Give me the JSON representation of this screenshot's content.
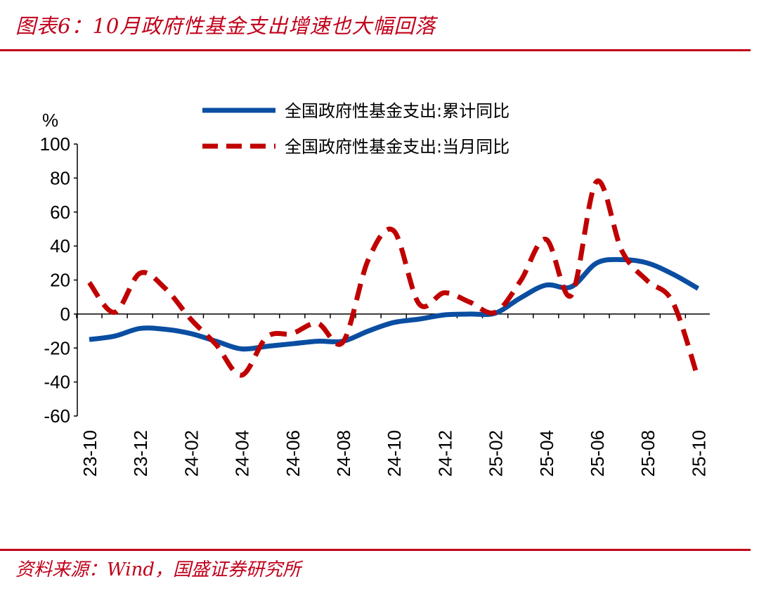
{
  "title": "图表6：10月政府性基金支出增速也大幅回落",
  "source": "资料来源：Wind，国盛证券研究所",
  "colors": {
    "accent": "#c0001a",
    "series_cum": "#0a4ea2",
    "series_month": "#c00000"
  },
  "chart_data": {
    "type": "line",
    "ylabel": "%",
    "ylim": [
      -60,
      100
    ],
    "yticks": [
      100,
      80,
      60,
      40,
      20,
      0,
      -20,
      -40,
      -60
    ],
    "xtick_labels": [
      "23-10",
      "23-12",
      "24-02",
      "24-04",
      "24-06",
      "24-08",
      "24-10",
      "24-12",
      "25-02",
      "25-04",
      "25-06",
      "25-08",
      "25-10"
    ],
    "x": [
      "23-10",
      "23-11",
      "23-12",
      "24-01",
      "24-02",
      "24-03",
      "24-04",
      "24-05",
      "24-06",
      "24-07",
      "24-08",
      "24-09",
      "24-10",
      "24-11",
      "24-12",
      "25-01",
      "25-02",
      "25-03",
      "25-04",
      "25-05",
      "25-06",
      "25-07",
      "25-08",
      "25-09",
      "25-10"
    ],
    "legend_position": "top",
    "grid": false,
    "series": [
      {
        "name": "全国政府性基金支出:累计同比",
        "style": "solid",
        "values": [
          -15,
          -13,
          -8.5,
          -9,
          -11.5,
          -16,
          -20.5,
          -19,
          -17.5,
          -16,
          -16,
          -10,
          -5,
          -3,
          -0.5,
          0,
          0.5,
          9.5,
          17,
          16,
          30,
          32,
          30,
          23.5,
          15
        ]
      },
      {
        "name": "全国政府性基金支出:当月同比",
        "style": "dashed",
        "values": [
          18.5,
          1,
          24,
          15,
          -3,
          -18,
          -36,
          -13.5,
          -11.5,
          -5.5,
          -16.5,
          32,
          49,
          6,
          12.5,
          7,
          1,
          19.5,
          44,
          11,
          78,
          37,
          19.5,
          7,
          -38
        ]
      }
    ]
  }
}
